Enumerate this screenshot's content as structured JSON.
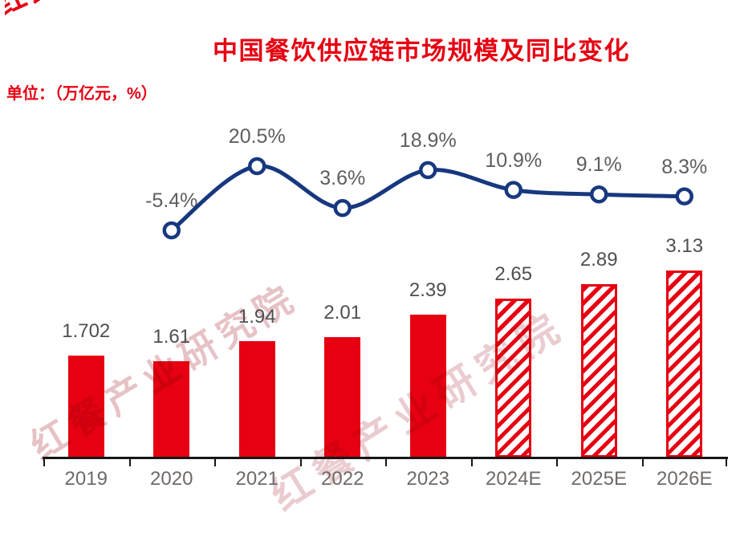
{
  "header": {
    "title": "中国餐饮供应链市场规模及同比变化",
    "unit_label": "单位：（万亿元，%）",
    "title_color": "#e60012"
  },
  "stamp": {
    "text": "红餐"
  },
  "watermark": {
    "text": "红餐产业研究院"
  },
  "chart_data": {
    "type": "bar",
    "combo": "bar+line",
    "title": "中国餐饮供应链市场规模及同比变化",
    "unit": "万亿元，%",
    "legend": "none",
    "grid": "off",
    "categories": [
      "2019",
      "2020",
      "2021",
      "2022",
      "2023",
      "2024E",
      "2025E",
      "2026E"
    ],
    "series": [
      {
        "name": "市场规模（万亿元）",
        "type": "bar",
        "values": [
          1.702,
          1.61,
          1.94,
          2.01,
          2.39,
          2.65,
          2.89,
          3.13
        ],
        "labels": [
          "1.702",
          "1.61",
          "1.94",
          "2.01",
          "2.39",
          "2.65",
          "2.89",
          "3.13"
        ],
        "is_forecast": [
          false,
          false,
          false,
          false,
          false,
          true,
          true,
          true
        ]
      },
      {
        "name": "同比变化（%）",
        "type": "line",
        "values": [
          null,
          -5.4,
          20.5,
          3.6,
          18.9,
          10.9,
          9.1,
          8.3
        ],
        "labels": [
          "",
          "-5.4%",
          "20.5%",
          "3.6%",
          "18.9%",
          "10.9%",
          "9.1%",
          "8.3%"
        ]
      }
    ],
    "colors": {
      "bar": "#e60012",
      "bar_hatch_bg": "#ffffff",
      "line": "#17387f",
      "marker_fill": "#ffffff",
      "axis": "#161616",
      "value_label": "#4f4f4f",
      "pct_label": "#5e5e5e",
      "year_label": "#6f6a67"
    }
  }
}
